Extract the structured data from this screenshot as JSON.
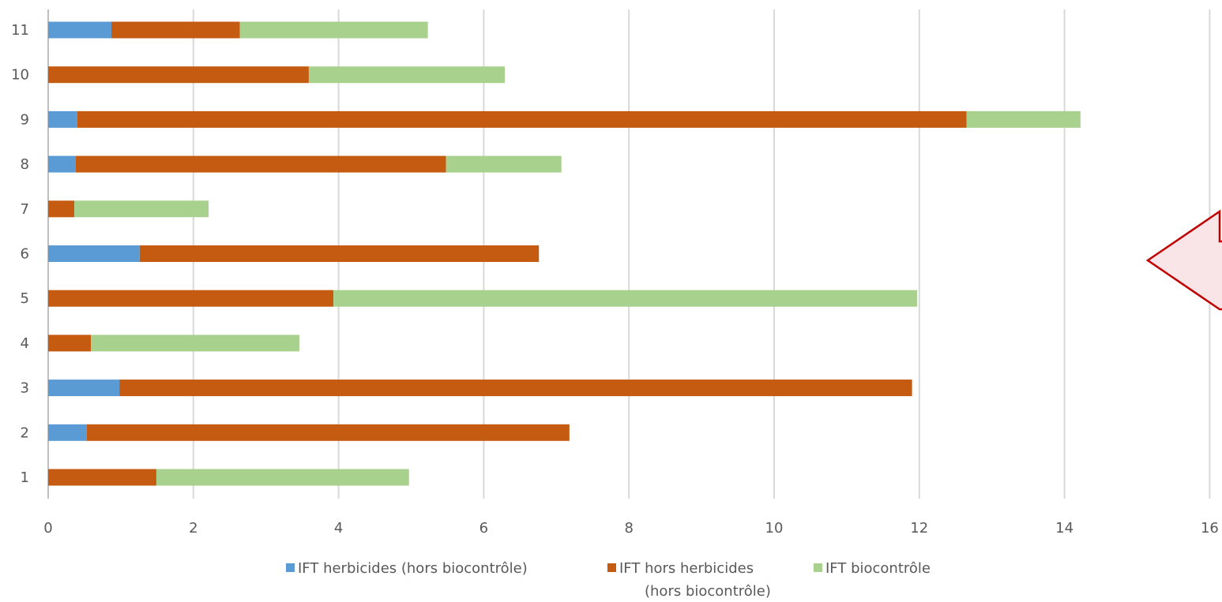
{
  "chart_data": {
    "type": "bar",
    "orientation": "horizontal",
    "stacked": true,
    "categories": [
      "1",
      "2",
      "3",
      "4",
      "5",
      "6",
      "7",
      "8",
      "9",
      "10",
      "11"
    ],
    "xlim": [
      0,
      16
    ],
    "x_ticks": [
      "0",
      "2",
      "4",
      "6",
      "8",
      "10",
      "12",
      "14",
      "16"
    ],
    "grid": "vertical",
    "legend_position": "bottom",
    "series": [
      {
        "name": "IFT herbicides (hors biocontrôle)",
        "color": "#5b9bd5",
        "values": [
          0,
          0.53,
          0.98,
          0,
          0,
          1.26,
          0,
          0.38,
          0.4,
          0,
          0.87
        ]
      },
      {
        "name": "IFT hors herbicides (hors biocontrôle)",
        "color": "#c55a11",
        "values": [
          1.49,
          6.65,
          10.92,
          0.59,
          3.93,
          5.5,
          0.36,
          5.1,
          12.25,
          3.59,
          1.77
        ]
      },
      {
        "name": "IFT biocontrôle",
        "color": "#a9d18e",
        "values": [
          3.48,
          0,
          0,
          2.87,
          8.04,
          0,
          1.85,
          1.59,
          1.57,
          2.7,
          2.59
        ]
      }
    ],
    "legend_lines": [
      [
        "IFT herbicides (hors biocontrôle)"
      ],
      [
        "IFT hors herbicides",
        "(hors biocontrôle)"
      ],
      [
        "IFT biocontrôle"
      ]
    ]
  },
  "annotation": {
    "type": "left-arrow",
    "fill": "#f9e5e7",
    "stroke": "#c00000"
  }
}
